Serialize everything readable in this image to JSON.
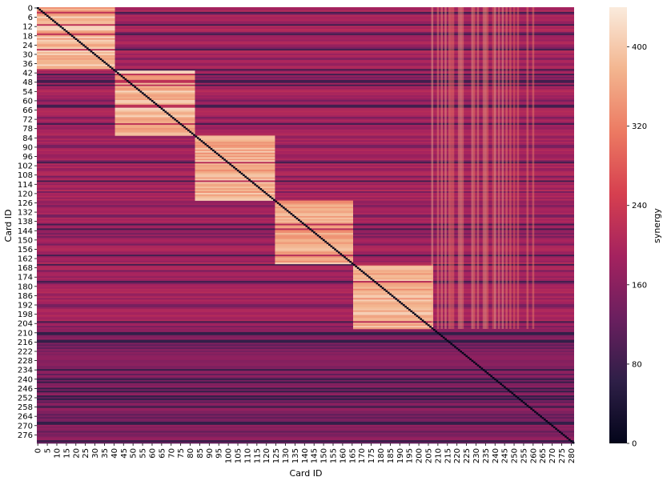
{
  "chart_data": {
    "type": "heatmap",
    "title": "",
    "xlabel": "Card ID",
    "ylabel": "Card ID",
    "colorbar_label": "synergy",
    "value_range": [
      0,
      440
    ],
    "colorbar_ticks": [
      0,
      80,
      160,
      240,
      320,
      400
    ],
    "colormap": [
      "#03051a",
      "#2e1f47",
      "#6a1f5f",
      "#a4225f",
      "#d63f4f",
      "#ec7a62",
      "#f3b58f",
      "#faebdd"
    ],
    "n_cards": 282,
    "x_ticks": [
      0,
      5,
      10,
      15,
      20,
      25,
      30,
      35,
      40,
      45,
      50,
      55,
      60,
      65,
      70,
      75,
      80,
      85,
      90,
      95,
      100,
      105,
      110,
      115,
      120,
      125,
      130,
      135,
      140,
      145,
      150,
      155,
      160,
      165,
      170,
      175,
      180,
      185,
      190,
      195,
      200,
      205,
      210,
      215,
      220,
      225,
      230,
      235,
      240,
      245,
      250,
      255,
      260,
      265,
      270,
      275,
      280
    ],
    "y_ticks": [
      0,
      6,
      12,
      18,
      24,
      30,
      36,
      42,
      48,
      54,
      60,
      66,
      72,
      78,
      84,
      90,
      96,
      102,
      108,
      114,
      120,
      126,
      132,
      138,
      144,
      150,
      156,
      162,
      168,
      174,
      180,
      186,
      192,
      198,
      204,
      210,
      216,
      222,
      228,
      234,
      240,
      246,
      252,
      258,
      264,
      270,
      276
    ],
    "high_synergy_blocks": [
      {
        "from": 0,
        "to": 40,
        "value": 400
      },
      {
        "from": 41,
        "to": 82,
        "value": 400
      },
      {
        "from": 83,
        "to": 124,
        "value": 390
      },
      {
        "from": 125,
        "to": 165,
        "value": 385
      },
      {
        "from": 166,
        "to": 207,
        "value": 390
      }
    ],
    "background_value": 185,
    "diagonal_value": 0
  }
}
